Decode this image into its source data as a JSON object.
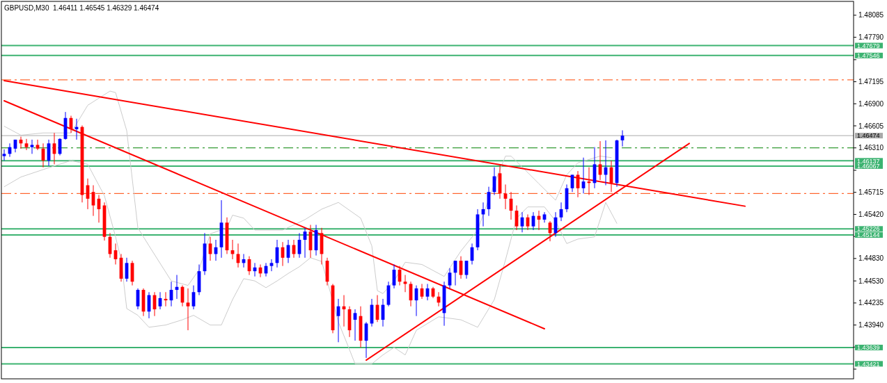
{
  "chart_data": {
    "type": "candlestick",
    "title": "GBPUSD,M30  1.46411 1.46545 1.46329 1.46474",
    "categories": [
      null,
      null,
      null,
      null,
      null,
      null,
      null,
      null,
      null,
      null,
      null,
      null,
      null,
      null,
      null,
      null,
      null,
      null,
      null,
      null,
      null,
      null,
      null,
      null,
      null,
      null,
      null,
      null,
      null,
      null,
      null,
      null,
      null,
      null,
      null,
      null,
      null,
      null,
      null,
      null,
      null,
      null,
      null,
      null,
      null,
      null,
      null,
      null,
      null,
      null,
      null,
      null,
      null,
      null,
      null,
      null,
      null,
      null,
      null,
      null,
      null,
      null,
      null,
      null,
      null,
      null,
      null,
      null,
      null,
      null,
      null,
      null,
      null,
      null,
      null,
      null,
      null,
      null,
      null,
      null,
      null,
      null,
      null,
      null,
      null,
      null,
      null,
      null,
      null,
      null,
      null,
      null,
      null,
      null,
      null,
      null,
      null,
      null,
      null,
      null,
      null,
      null,
      null,
      null,
      null,
      null,
      null,
      null,
      null,
      null,
      null,
      null,
      null,
      null,
      null,
      null,
      null,
      null,
      null,
      null,
      null,
      null,
      null,
      null,
      null,
      null,
      null,
      null,
      null,
      null,
      null,
      null,
      null,
      null,
      null,
      null,
      null,
      null,
      null,
      null,
      null,
      null,
      null,
      null,
      null,
      null,
      null,
      null,
      null,
      null,
      null,
      null,
      null
    ],
    "ohlc": [
      [
        1.462,
        1.4629,
        1.4614,
        1.4623
      ],
      [
        1.4623,
        1.4637,
        1.4619,
        1.4632
      ],
      [
        1.463,
        1.4642,
        1.4625,
        1.4642
      ],
      [
        1.4642,
        1.4646,
        1.463,
        1.4637
      ],
      [
        1.4637,
        1.4643,
        1.4628,
        1.4632
      ],
      [
        1.4632,
        1.4642,
        1.4623,
        1.4635
      ],
      [
        1.4635,
        1.4642,
        1.4628,
        1.463
      ],
      [
        1.463,
        1.4637,
        1.4605,
        1.4614
      ],
      [
        1.4614,
        1.4642,
        1.4607,
        1.4637
      ],
      [
        1.4637,
        1.4651,
        1.4609,
        1.4623
      ],
      [
        1.4623,
        1.4644,
        1.4621,
        1.4643
      ],
      [
        1.4643,
        1.4679,
        1.4642,
        1.4671
      ],
      [
        1.4671,
        1.4674,
        1.4651,
        1.4656
      ],
      [
        1.4656,
        1.467,
        1.4642,
        1.4659
      ],
      [
        1.4659,
        1.4661,
        1.4558,
        1.4568
      ],
      [
        1.4581,
        1.459,
        1.4549,
        1.4563
      ],
      [
        1.4572,
        1.4581,
        1.454,
        1.4554
      ],
      [
        1.4563,
        1.4568,
        1.4531,
        1.4549
      ],
      [
        1.4554,
        1.4558,
        1.4507,
        1.4512
      ],
      [
        1.4512,
        1.4517,
        1.4484,
        1.4489
      ],
      [
        1.4494,
        1.4503,
        1.4475,
        1.4482
      ],
      [
        1.4484,
        1.4489,
        1.4452,
        1.4456
      ],
      [
        1.4456,
        1.4484,
        1.4452,
        1.4477
      ],
      [
        1.4477,
        1.448,
        1.4447,
        1.4452
      ],
      [
        1.4419,
        1.4443,
        1.4415,
        1.4441
      ],
      [
        1.4441,
        1.4443,
        1.4406,
        1.4412
      ],
      [
        1.4412,
        1.4438,
        1.4403,
        1.4434
      ],
      [
        1.4434,
        1.4438,
        1.4406,
        1.4415
      ],
      [
        1.4419,
        1.4438,
        1.4415,
        1.443
      ],
      [
        1.4429,
        1.4438,
        1.4419,
        1.4427
      ],
      [
        1.4427,
        1.4452,
        1.4419,
        1.4441
      ],
      [
        1.4441,
        1.4461,
        1.4429,
        1.4445
      ],
      [
        1.4445,
        1.4447,
        1.4419,
        1.4424
      ],
      [
        1.4424,
        1.4443,
        1.4387,
        1.4419
      ],
      [
        1.4419,
        1.4447,
        1.4415,
        1.4438
      ],
      [
        1.4438,
        1.4475,
        1.4434,
        1.4466
      ],
      [
        1.4466,
        1.4517,
        1.4461,
        1.4503
      ],
      [
        1.4503,
        1.4512,
        1.448,
        1.4489
      ],
      [
        1.4489,
        1.4508,
        1.448,
        1.4498
      ],
      [
        1.4498,
        1.4561,
        1.4484,
        1.4531
      ],
      [
        1.4531,
        1.4538,
        1.4489,
        1.4494
      ],
      [
        1.4494,
        1.4508,
        1.4482,
        1.4489
      ],
      [
        1.4489,
        1.4503,
        1.4471,
        1.4477
      ],
      [
        1.4477,
        1.4489,
        1.4471,
        1.4482
      ],
      [
        1.4482,
        1.4486,
        1.4461,
        1.4466
      ],
      [
        1.4466,
        1.4477,
        1.4459,
        1.4471
      ],
      [
        1.4471,
        1.4475,
        1.4458,
        1.4463
      ],
      [
        1.4463,
        1.4477,
        1.4459,
        1.4473
      ],
      [
        1.4473,
        1.4482,
        1.4466,
        1.4477
      ],
      [
        1.4477,
        1.4508,
        1.4471,
        1.4498
      ],
      [
        1.4498,
        1.4505,
        1.4473,
        1.4484
      ],
      [
        1.4484,
        1.4508,
        1.4477,
        1.4501
      ],
      [
        1.4501,
        1.4508,
        1.4484,
        1.4489
      ],
      [
        1.4489,
        1.4517,
        1.4484,
        1.4508
      ],
      [
        1.4508,
        1.4524,
        1.4484,
        1.4519
      ],
      [
        1.4519,
        1.4528,
        1.4484,
        1.4494
      ],
      [
        1.4494,
        1.4528,
        1.4487,
        1.4521
      ],
      [
        1.4517,
        1.4524,
        1.4475,
        1.4489
      ],
      [
        1.448,
        1.4484,
        1.4447,
        1.4452
      ],
      [
        1.4447,
        1.4449,
        1.4383,
        1.4387
      ],
      [
        1.4406,
        1.4429,
        1.4371,
        1.4419
      ],
      [
        1.4419,
        1.4434,
        1.4392,
        1.4415
      ],
      [
        1.4415,
        1.4419,
        1.4378,
        1.4387
      ],
      [
        1.4401,
        1.4415,
        1.4373,
        1.441
      ],
      [
        1.4406,
        1.4419,
        1.4364,
        1.4373
      ],
      [
        1.4373,
        1.4398,
        1.435,
        1.4396
      ],
      [
        1.4396,
        1.4429,
        1.4392,
        1.4421
      ],
      [
        1.4421,
        1.4434,
        1.4398,
        1.4401
      ],
      [
        1.4401,
        1.4429,
        1.4392,
        1.4421
      ],
      [
        1.4421,
        1.4452,
        1.4419,
        1.4447
      ],
      [
        1.4447,
        1.4475,
        1.4443,
        1.4468
      ],
      [
        1.4468,
        1.4473,
        1.4447,
        1.4452
      ],
      [
        1.4452,
        1.4461,
        1.4438,
        1.4449
      ],
      [
        1.4449,
        1.4452,
        1.4419,
        1.4427
      ],
      [
        1.4427,
        1.4447,
        1.4406,
        1.4443
      ],
      [
        1.4443,
        1.4449,
        1.4429,
        1.4432
      ],
      [
        1.4432,
        1.4449,
        1.4427,
        1.4443
      ],
      [
        1.4443,
        1.4445,
        1.443,
        1.4432
      ],
      [
        1.4432,
        1.4438,
        1.4419,
        1.4424
      ],
      [
        1.441,
        1.4452,
        1.4393,
        1.4447
      ],
      [
        1.4447,
        1.447,
        1.4443,
        1.4464
      ],
      [
        1.4464,
        1.448,
        1.4447,
        1.448
      ],
      [
        1.448,
        1.4486,
        1.4456,
        1.4461
      ],
      [
        1.4461,
        1.448,
        1.4456,
        1.448
      ],
      [
        1.448,
        1.4503,
        1.4475,
        1.4498
      ],
      [
        1.4498,
        1.4549,
        1.4494,
        1.4542
      ],
      [
        1.4542,
        1.4558,
        1.4526,
        1.4549
      ],
      [
        1.4549,
        1.4579,
        1.454,
        1.4572
      ],
      [
        1.4572,
        1.4605,
        1.4568,
        1.4593
      ],
      [
        1.4597,
        1.4607,
        1.4563,
        1.457
      ],
      [
        1.457,
        1.4582,
        1.4549,
        1.4563
      ],
      [
        1.4563,
        1.4572,
        1.4535,
        1.4547
      ],
      [
        1.4547,
        1.4554,
        1.4521,
        1.4526
      ],
      [
        1.4526,
        1.4545,
        1.4518,
        1.4538
      ],
      [
        1.4538,
        1.4542,
        1.4521,
        1.4526
      ],
      [
        1.4526,
        1.4545,
        1.4521,
        1.454
      ],
      [
        1.454,
        1.4547,
        1.4521,
        1.4535
      ],
      [
        1.4535,
        1.4545,
        1.4531,
        1.4542
      ],
      [
        1.4531,
        1.4533,
        1.4506,
        1.4517
      ],
      [
        1.4517,
        1.4545,
        1.4512,
        1.4538
      ],
      [
        1.4538,
        1.4558,
        1.4533,
        1.4549
      ],
      [
        1.4549,
        1.4582,
        1.4545,
        1.4577
      ],
      [
        1.4577,
        1.4595,
        1.4572,
        1.4595
      ],
      [
        1.4595,
        1.46,
        1.4565,
        1.4577
      ],
      [
        1.4577,
        1.4618,
        1.457,
        1.4586
      ],
      [
        1.4586,
        1.4605,
        1.4568,
        1.4584
      ],
      [
        1.4584,
        1.4632,
        1.4577,
        1.4609
      ],
      [
        1.4609,
        1.464,
        1.4588,
        1.4595
      ],
      [
        1.4595,
        1.4641,
        1.4581,
        1.4605
      ],
      [
        1.4605,
        1.4614,
        1.4572,
        1.4584
      ],
      [
        1.4584,
        1.4642,
        1.4579,
        1.4641
      ],
      [
        1.46411,
        1.46545,
        1.46329,
        1.46474
      ],
      null,
      null,
      null,
      null,
      null,
      null,
      null,
      null,
      null,
      null,
      null,
      null,
      null,
      null,
      null,
      null,
      null,
      null,
      null,
      null,
      null,
      null,
      null,
      null,
      null,
      null,
      null,
      null,
      null,
      null,
      null,
      null,
      null,
      null,
      null,
      null,
      null,
      null,
      null,
      null,
      null
    ],
    "colors": [
      "#0000ff",
      "#0000ff",
      "#0000ff",
      "#ff0000",
      "#ff0000",
      "#0000ff",
      "#ff0000",
      "#ff0000",
      "#0000ff",
      "#ff0000",
      "#0000ff",
      "#0000ff",
      "#ff0000",
      "#0000ff",
      "#ff0000",
      "#ff0000",
      "#ff0000",
      "#ff0000",
      "#ff0000",
      "#ff0000",
      "#ff0000",
      "#ff0000",
      "#0000ff",
      "#ff0000",
      "#0000ff",
      "#ff0000",
      "#0000ff",
      "#ff0000",
      "#0000ff",
      "#ff0000",
      "#0000ff",
      "#0000ff",
      "#ff0000",
      "#ff0000",
      "#0000ff",
      "#0000ff",
      "#0000ff",
      "#ff0000",
      "#0000ff",
      "#0000ff",
      "#ff0000",
      "#ff0000",
      "#ff0000",
      "#0000ff",
      "#ff0000",
      "#0000ff",
      "#ff0000",
      "#0000ff",
      "#0000ff",
      "#0000ff",
      "#ff0000",
      "#0000ff",
      "#ff0000",
      "#0000ff",
      "#0000ff",
      "#ff0000",
      "#0000ff",
      "#ff0000",
      "#ff0000",
      "#ff0000",
      "#0000ff",
      "#ff0000",
      "#ff0000",
      "#0000ff",
      "#ff0000",
      "#0000ff",
      "#0000ff",
      "#ff0000",
      "#0000ff",
      "#0000ff",
      "#0000ff",
      "#ff0000",
      "#ff0000",
      "#ff0000",
      "#0000ff",
      "#ff0000",
      "#0000ff",
      "#ff0000",
      "#ff0000",
      "#0000ff",
      "#0000ff",
      "#0000ff",
      "#ff0000",
      "#0000ff",
      "#0000ff",
      "#0000ff",
      "#0000ff",
      "#0000ff",
      "#0000ff",
      "#ff0000",
      "#ff0000",
      "#ff0000",
      "#ff0000",
      "#0000ff",
      "#ff0000",
      "#0000ff",
      "#ff0000",
      "#0000ff",
      "#ff0000",
      "#0000ff",
      "#0000ff",
      "#0000ff",
      "#0000ff",
      "#ff0000",
      "#0000ff",
      "#ff0000",
      "#0000ff",
      "#ff0000",
      "#0000ff",
      "#ff0000",
      "#0000ff",
      "#0000ff",
      null,
      null,
      null,
      null,
      null,
      null,
      null,
      null,
      null,
      null,
      null,
      null,
      null,
      null,
      null,
      null,
      null,
      null,
      null,
      null,
      null,
      null,
      null,
      null,
      null,
      null,
      null,
      null,
      null,
      null,
      null,
      null,
      null,
      null,
      null,
      null,
      null,
      null,
      null,
      null,
      null
    ],
    "ylim": [
      1.4322,
      1.4827
    ],
    "yticks": [
      1.48085,
      {
        "value": 1.4779,
        "label": "1.47790"
      },
      {
        "value": 1.4749,
        "label": null
      },
      1.47195,
      {
        "value": 1.469,
        "label": "1.46900"
      },
      1.46605,
      {
        "value": 1.4631,
        "label": "1.46310"
      },
      {
        "value": 1.4601,
        "label": null
      },
      1.45715,
      {
        "value": 1.4542,
        "label": "1.45420"
      },
      {
        "value": 1.45125,
        "label": null
      },
      {
        "value": 1.4483,
        "label": "1.44830"
      },
      {
        "value": 1.4453,
        "label": "1.44530"
      },
      1.44235,
      {
        "value": 1.4394,
        "label": "1.43940"
      },
      {
        "value": 1.43645,
        "label": null
      },
      {
        "value": 1.4335,
        "label": null
      }
    ],
    "tick_labels": "y",
    "ref_lines": [
      {
        "axis": "y",
        "value": 1.47679,
        "label": "1.47679",
        "color": "#3cb371"
      },
      {
        "axis": "y",
        "value": 1.47546,
        "label": "1.47546",
        "color": "#3cb371"
      },
      {
        "axis": "y",
        "value": 1.46137,
        "label": "1.46137",
        "color": "#3cb371"
      },
      {
        "axis": "y",
        "value": 1.46067,
        "label": "1.46067",
        "color": "#3cb371"
      },
      {
        "axis": "y",
        "value": 1.45226,
        "label": "1.45226",
        "color": "#3cb371"
      },
      {
        "axis": "y",
        "value": 1.45144,
        "label": "1.45144",
        "color": "#3cb371"
      },
      {
        "axis": "y",
        "value": 1.43639,
        "label": "1.43639",
        "color": "#3cb371"
      },
      {
        "axis": "y",
        "value": 1.43421,
        "label": "1.43421",
        "color": "#3cb371"
      },
      {
        "axis": "y",
        "value": 1.46474,
        "label": "1.46474",
        "color": "#a8a8a8"
      },
      {
        "axis": "y",
        "value": 1.4722,
        "color": "#ff4500",
        "line_style": "dashed"
      },
      {
        "axis": "y",
        "value": 1.4631,
        "color": "#008000",
        "line_style": "dashed"
      },
      {
        "axis": "y",
        "value": 1.457,
        "color": "#ff4500",
        "line_style": "dashed"
      }
    ],
    "series": [
      {
        "type": "line",
        "color": "#cccccc",
        "values": [
          1.466,
          null,
          null,
          1.4648,
          null,
          null,
          null,
          1.4651,
          null,
          null,
          null,
          null,
          1.4651,
          null,
          null,
          1.4688,
          null,
          null,
          null,
          1.4707,
          1.4705,
          null,
          1.4654,
          null,
          1.4524,
          null,
          1.45,
          null,
          null,
          null,
          1.4453,
          null,
          null,
          1.4447,
          null,
          1.4468,
          null,
          1.4516,
          null,
          null,
          1.4524,
          1.4541,
          null,
          1.4537,
          null,
          1.4521,
          null,
          null,
          null,
          null,
          1.4521,
          null,
          null,
          null,
          1.4535,
          null,
          null,
          1.4549,
          null,
          null,
          1.4558,
          null,
          null,
          null,
          1.4537,
          null,
          1.45,
          1.444,
          1.4436,
          null,
          1.4453,
          null,
          1.4478,
          null,
          null,
          1.4475,
          null,
          null,
          null,
          1.4459,
          null,
          null,
          1.4493,
          null,
          null,
          1.4521,
          null,
          null,
          1.4583,
          null,
          1.462,
          1.462,
          null,
          null,
          1.4598,
          null,
          1.4583,
          null,
          null,
          1.4561,
          null,
          1.4595,
          null,
          1.4611,
          null,
          null,
          null,
          1.462,
          null,
          1.4618,
          null,
          null,
          null,
          null,
          null,
          null,
          null,
          null,
          null,
          null,
          null,
          null,
          null,
          null,
          null,
          null,
          null,
          null,
          null,
          null,
          null,
          null,
          null,
          null,
          null,
          null,
          null,
          null,
          null,
          null,
          null,
          null,
          null,
          null,
          null,
          null,
          null,
          null,
          null,
          null,
          null,
          null,
          null
        ]
      },
      {
        "type": "line",
        "color": "#cccccc",
        "values": [
          1.4579,
          null,
          null,
          1.4592,
          null,
          null,
          null,
          1.4602,
          null,
          null,
          null,
          null,
          1.4614,
          null,
          null,
          1.4609,
          null,
          null,
          1.4567,
          null,
          1.4512,
          1.4481,
          1.4416,
          null,
          1.4407,
          null,
          1.4391,
          null,
          null,
          1.4394,
          null,
          null,
          1.4401,
          null,
          1.4407,
          null,
          null,
          1.4394,
          null,
          1.4394,
          null,
          1.4428,
          null,
          1.4456,
          null,
          1.4453,
          null,
          1.4444,
          null,
          1.4453,
          null,
          1.4463,
          null,
          1.4472,
          null,
          1.4484,
          null,
          1.4479,
          1.4453,
          null,
          1.4398,
          null,
          1.4361,
          1.4342,
          null,
          null,
          1.4342,
          null,
          1.4354,
          null,
          1.4364,
          null,
          1.4354,
          null,
          1.4387,
          null,
          null,
          null,
          1.4405,
          null,
          null,
          null,
          1.4401,
          null,
          null,
          1.4391,
          null,
          null,
          1.4428,
          null,
          1.4481,
          null,
          1.4537,
          null,
          1.4552,
          null,
          null,
          1.4552,
          null,
          1.4533,
          null,
          1.4503,
          null,
          1.4509,
          null,
          null,
          1.4512,
          null,
          1.4558,
          null,
          1.453,
          null,
          null,
          null,
          null,
          null,
          null,
          null,
          null,
          null,
          null,
          null,
          null,
          null,
          null,
          null,
          null,
          null,
          null,
          null,
          null,
          null,
          null,
          null,
          null,
          null,
          null,
          null,
          null,
          null,
          null,
          null,
          null,
          null,
          null,
          null,
          null,
          null,
          null,
          null,
          null,
          null,
          null
        ]
      },
      {
        "type": "line",
        "color": "#ff0000",
        "values": [
          1.4721,
          null,
          null,
          null,
          null,
          null,
          null,
          null,
          null,
          null,
          null,
          null,
          null,
          null,
          null,
          null,
          null,
          null,
          null,
          null,
          null,
          null,
          null,
          null,
          null,
          null,
          null,
          null,
          null,
          null,
          null,
          null,
          null,
          null,
          null,
          null,
          null,
          null,
          null,
          null,
          null,
          null,
          null,
          null,
          null,
          null,
          null,
          null,
          null,
          null,
          null,
          null,
          null,
          null,
          null,
          null,
          null,
          null,
          null,
          null,
          null,
          null,
          null,
          null,
          null,
          null,
          null,
          null,
          null,
          null,
          null,
          null,
          null,
          null,
          null,
          null,
          null,
          null,
          null,
          null,
          null,
          null,
          null,
          null,
          null,
          null,
          null,
          null,
          null,
          null,
          null,
          null,
          null,
          null,
          null,
          null,
          null,
          null,
          null,
          null,
          null,
          null,
          null,
          null,
          null,
          null,
          null,
          null,
          null,
          null,
          null,
          null,
          null,
          null,
          null,
          null,
          null,
          null,
          null,
          null,
          null,
          null,
          null,
          null,
          null,
          null,
          null,
          null,
          null,
          null,
          null,
          null,
          null,
          1.4553,
          null,
          null,
          null,
          null,
          null,
          null,
          null,
          null,
          null,
          null,
          null,
          null,
          null,
          null,
          null,
          null,
          null,
          null,
          null
        ]
      },
      {
        "type": "line",
        "color": "#ff0000",
        "values": [
          1.4694,
          null,
          null,
          null,
          null,
          null,
          null,
          null,
          null,
          null,
          null,
          null,
          null,
          null,
          null,
          null,
          null,
          null,
          null,
          null,
          null,
          null,
          null,
          null,
          null,
          null,
          null,
          null,
          null,
          null,
          null,
          null,
          null,
          null,
          null,
          null,
          null,
          null,
          null,
          null,
          null,
          null,
          null,
          null,
          null,
          null,
          null,
          null,
          null,
          null,
          null,
          null,
          null,
          null,
          null,
          null,
          null,
          null,
          null,
          null,
          null,
          null,
          null,
          null,
          null,
          null,
          null,
          null,
          null,
          null,
          null,
          null,
          null,
          null,
          null,
          null,
          null,
          null,
          null,
          null,
          null,
          null,
          null,
          null,
          null,
          null,
          null,
          null,
          null,
          null,
          null,
          null,
          null,
          null,
          null,
          null,
          null,
          1.4389,
          null,
          null,
          null,
          null,
          null,
          null,
          null,
          null,
          null,
          null,
          null,
          null,
          null,
          null,
          null,
          null,
          null,
          null,
          null,
          null,
          null,
          null,
          null,
          null,
          null,
          null,
          null,
          null,
          null,
          null,
          null,
          null,
          null,
          null,
          null,
          null,
          null,
          null,
          null,
          null,
          null,
          null,
          null,
          null,
          null,
          null,
          null,
          null,
          null,
          null,
          null,
          null,
          null,
          null,
          null
        ]
      },
      {
        "type": "line",
        "color": "#ff0000",
        "values": [
          null,
          null,
          null,
          null,
          null,
          null,
          null,
          null,
          null,
          null,
          null,
          null,
          null,
          null,
          null,
          null,
          null,
          null,
          null,
          null,
          null,
          null,
          null,
          null,
          null,
          null,
          null,
          null,
          null,
          null,
          null,
          null,
          null,
          null,
          null,
          null,
          null,
          null,
          null,
          null,
          null,
          null,
          null,
          null,
          null,
          null,
          null,
          null,
          null,
          null,
          null,
          null,
          null,
          null,
          null,
          null,
          null,
          null,
          null,
          null,
          null,
          null,
          null,
          null,
          null,
          1.4347,
          null,
          null,
          null,
          null,
          null,
          null,
          null,
          null,
          null,
          null,
          null,
          null,
          null,
          null,
          null,
          null,
          null,
          null,
          null,
          null,
          null,
          null,
          null,
          null,
          null,
          null,
          null,
          null,
          null,
          null,
          null,
          null,
          null,
          null,
          null,
          null,
          null,
          null,
          null,
          null,
          null,
          null,
          null,
          null,
          null,
          null,
          null,
          null,
          null,
          null,
          null,
          null,
          null,
          null,
          null,
          null,
          null,
          1.4637,
          null,
          null,
          null,
          null,
          null,
          null,
          null,
          null,
          null,
          null,
          null,
          null,
          null,
          null,
          null,
          null,
          null,
          null,
          null,
          null,
          null,
          null,
          null,
          null,
          null,
          null,
          null,
          null,
          null
        ]
      }
    ]
  }
}
